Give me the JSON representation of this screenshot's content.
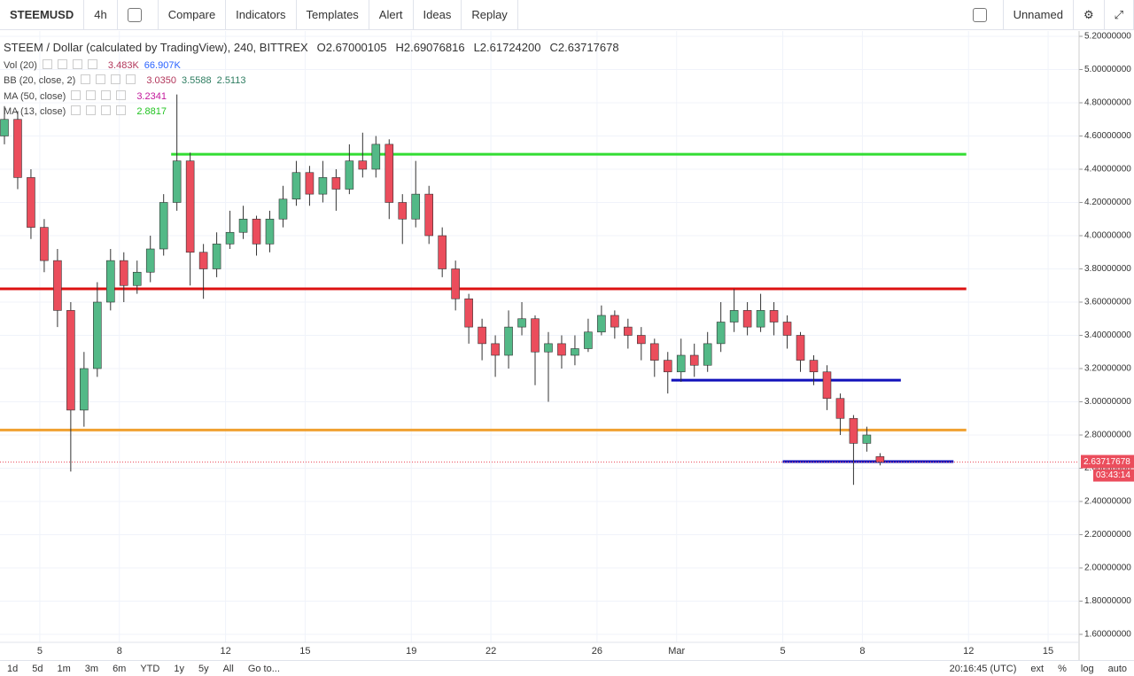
{
  "toolbar": {
    "symbol": "STEEMUSD",
    "interval": "4h",
    "items": [
      "Compare",
      "Indicators",
      "Templates",
      "Alert",
      "Ideas",
      "Replay"
    ],
    "layout_name": "Unnamed"
  },
  "legend": {
    "title": "STEEM / Dollar (calculated by TradingView), 240, BITTREX",
    "ohlc": [
      {
        "key": "O",
        "text": "2.67000105"
      },
      {
        "key": "H",
        "text": "2.69076816"
      },
      {
        "key": "L",
        "text": "2.61724200"
      },
      {
        "key": "C",
        "text": "2.63717678"
      }
    ],
    "indicators": [
      {
        "name": "Vol (20)",
        "values": [
          "3.483K",
          "66.907K"
        ],
        "colors": [
          "#b2365b",
          "#2962ff"
        ]
      },
      {
        "name": "BB (20, close, 2)",
        "values": [
          "3.0350",
          "3.5588",
          "2.5113"
        ],
        "colors": [
          "#b2365b",
          "#2e7d61",
          "#2e7d61"
        ]
      },
      {
        "name": "MA (50, close)",
        "values": [
          "3.2341"
        ],
        "colors": [
          "#c2189b"
        ]
      },
      {
        "name": "MA (13, close)",
        "values": [
          "2.8817"
        ],
        "colors": [
          "#22c322"
        ]
      }
    ]
  },
  "chart_data": {
    "type": "candlestick",
    "xlim": [
      -9,
      235
    ],
    "xticks": [
      {
        "value": 0,
        "label": "5"
      },
      {
        "value": 18,
        "label": "8"
      },
      {
        "value": 42,
        "label": "12"
      },
      {
        "value": 60,
        "label": "15"
      },
      {
        "value": 84,
        "label": "19"
      },
      {
        "value": 102,
        "label": "22"
      },
      {
        "value": 126,
        "label": "26"
      },
      {
        "value": 144,
        "label": "Mar"
      },
      {
        "value": 168,
        "label": "5"
      },
      {
        "value": 186,
        "label": "8"
      },
      {
        "value": 210,
        "label": "12"
      },
      {
        "value": 228,
        "label": "15"
      }
    ],
    "ylim": [
      1.552,
      5.232
    ],
    "yticks": [
      {
        "value": 1.6,
        "label": "1.60000000"
      },
      {
        "value": 1.8,
        "label": "1.80000000"
      },
      {
        "value": 2.0,
        "label": "2.00000000"
      },
      {
        "value": 2.2,
        "label": "2.20000000"
      },
      {
        "value": 2.4,
        "label": "2.40000000"
      },
      {
        "value": 2.6,
        "label": "2.60000000"
      },
      {
        "value": 2.8,
        "label": "2.80000000"
      },
      {
        "value": 3.0,
        "label": "3.00000000"
      },
      {
        "value": 3.2,
        "label": "3.20000000"
      },
      {
        "value": 3.4,
        "label": "3.40000000"
      },
      {
        "value": 3.6,
        "label": "3.60000000"
      },
      {
        "value": 3.8,
        "label": "3.80000000"
      },
      {
        "value": 4.0,
        "label": "4.00000000"
      },
      {
        "value": 4.2,
        "label": "4.20000000"
      },
      {
        "value": 4.4,
        "label": "4.40000000"
      },
      {
        "value": 4.6,
        "label": "4.60000000"
      },
      {
        "value": 4.8,
        "label": "4.80000000"
      },
      {
        "value": 5.0,
        "label": "5.00000000"
      },
      {
        "value": 5.2,
        "label": "5.20000000"
      }
    ],
    "grid": true,
    "up_color": "#53b987",
    "down_color": "#eb4d5c",
    "candles": {
      "x": [
        -8,
        -5,
        -2,
        1,
        4,
        7,
        10,
        13,
        16,
        19,
        22,
        25,
        28,
        31,
        34,
        37,
        40,
        43,
        46,
        49,
        52,
        55,
        58,
        61,
        64,
        67,
        70,
        73,
        76,
        79,
        82,
        85,
        88,
        91,
        94,
        97,
        100,
        103,
        106,
        109,
        112,
        115,
        118,
        121,
        124,
        127,
        130,
        133,
        136,
        139,
        142,
        145,
        148,
        151,
        154,
        157,
        160,
        163,
        166,
        169,
        172,
        175,
        178,
        181,
        184,
        187,
        190
      ],
      "open": [
        4.6,
        4.7,
        4.35,
        4.05,
        3.85,
        3.55,
        2.95,
        3.2,
        3.6,
        3.85,
        3.7,
        3.78,
        3.92,
        4.2,
        4.45,
        3.9,
        3.8,
        3.95,
        4.02,
        4.1,
        3.95,
        4.1,
        4.22,
        4.38,
        4.25,
        4.35,
        4.28,
        4.45,
        4.4,
        4.55,
        4.2,
        4.1,
        4.25,
        4.0,
        3.8,
        3.62,
        3.45,
        3.35,
        3.28,
        3.45,
        3.5,
        3.3,
        3.35,
        3.28,
        3.32,
        3.42,
        3.52,
        3.45,
        3.4,
        3.35,
        3.25,
        3.18,
        3.28,
        3.22,
        3.35,
        3.48,
        3.55,
        3.45,
        3.55,
        3.48,
        3.4,
        3.25,
        3.18,
        3.02,
        2.9,
        2.75,
        2.67000105
      ],
      "high": [
        4.78,
        4.75,
        4.4,
        4.1,
        3.92,
        3.6,
        3.3,
        3.72,
        3.92,
        3.9,
        3.85,
        4.0,
        4.25,
        4.85,
        4.5,
        3.95,
        4.02,
        4.15,
        4.18,
        4.12,
        4.15,
        4.3,
        4.45,
        4.42,
        4.45,
        4.4,
        4.55,
        4.62,
        4.6,
        4.58,
        4.25,
        4.45,
        4.3,
        4.05,
        3.85,
        3.65,
        3.5,
        3.4,
        3.55,
        3.6,
        3.52,
        3.42,
        3.4,
        3.4,
        3.5,
        3.58,
        3.55,
        3.5,
        3.45,
        3.38,
        3.3,
        3.38,
        3.35,
        3.42,
        3.6,
        3.68,
        3.6,
        3.65,
        3.6,
        3.52,
        3.42,
        3.28,
        3.22,
        3.05,
        2.92,
        2.85,
        2.69076816
      ],
      "low": [
        4.55,
        4.28,
        3.98,
        3.78,
        3.45,
        2.58,
        2.85,
        3.15,
        3.55,
        3.6,
        3.65,
        3.72,
        3.88,
        4.15,
        3.7,
        3.62,
        3.75,
        3.92,
        3.98,
        3.88,
        3.9,
        4.05,
        4.18,
        4.18,
        4.2,
        4.15,
        4.25,
        4.35,
        4.35,
        4.1,
        3.95,
        4.05,
        3.95,
        3.75,
        3.55,
        3.35,
        3.25,
        3.15,
        3.2,
        3.4,
        3.1,
        3.0,
        3.2,
        3.22,
        3.3,
        3.4,
        3.38,
        3.32,
        3.25,
        3.15,
        3.05,
        3.12,
        3.15,
        3.18,
        3.3,
        3.42,
        3.4,
        3.42,
        3.4,
        3.32,
        3.18,
        3.1,
        2.95,
        2.8,
        2.5,
        2.7,
        2.617242
      ],
      "close": [
        4.7,
        4.35,
        4.05,
        3.85,
        3.55,
        2.95,
        3.2,
        3.6,
        3.85,
        3.7,
        3.78,
        3.92,
        4.2,
        4.45,
        3.9,
        3.8,
        3.95,
        4.02,
        4.1,
        3.95,
        4.1,
        4.22,
        4.38,
        4.25,
        4.35,
        4.28,
        4.45,
        4.4,
        4.55,
        4.2,
        4.1,
        4.25,
        4.0,
        3.8,
        3.62,
        3.45,
        3.35,
        3.28,
        3.45,
        3.5,
        3.3,
        3.35,
        3.28,
        3.32,
        3.42,
        3.52,
        3.45,
        3.4,
        3.35,
        3.25,
        3.18,
        3.28,
        3.22,
        3.35,
        3.48,
        3.55,
        3.45,
        3.55,
        3.48,
        3.4,
        3.25,
        3.18,
        3.02,
        2.9,
        2.75,
        2.8,
        2.63717678
      ]
    },
    "levels": [
      {
        "value": 4.49,
        "x_start": 29.7,
        "x_end": 209.5,
        "color": "#33dd33"
      },
      {
        "value": 3.68,
        "x_start": -9,
        "x_end": 209.5,
        "color": "#dd1111"
      },
      {
        "value": 3.13,
        "x_start": 142.8,
        "x_end": 194.7,
        "color": "#1111bb"
      },
      {
        "value": 2.83,
        "x_start": -9,
        "x_end": 209.5,
        "color": "#f0a030"
      },
      {
        "value": 2.64,
        "x_start": 168,
        "x_end": 206.6,
        "color": "#1111bb"
      }
    ],
    "countdown": "03:43:14"
  },
  "bottom_bar": {
    "ranges": [
      "1d",
      "5d",
      "1m",
      "3m",
      "6m",
      "YTD",
      "1y",
      "5y",
      "All",
      "Go to..."
    ],
    "clock": "20:16:45 (UTC)",
    "options": [
      "ext",
      "%",
      "log",
      "auto"
    ]
  }
}
